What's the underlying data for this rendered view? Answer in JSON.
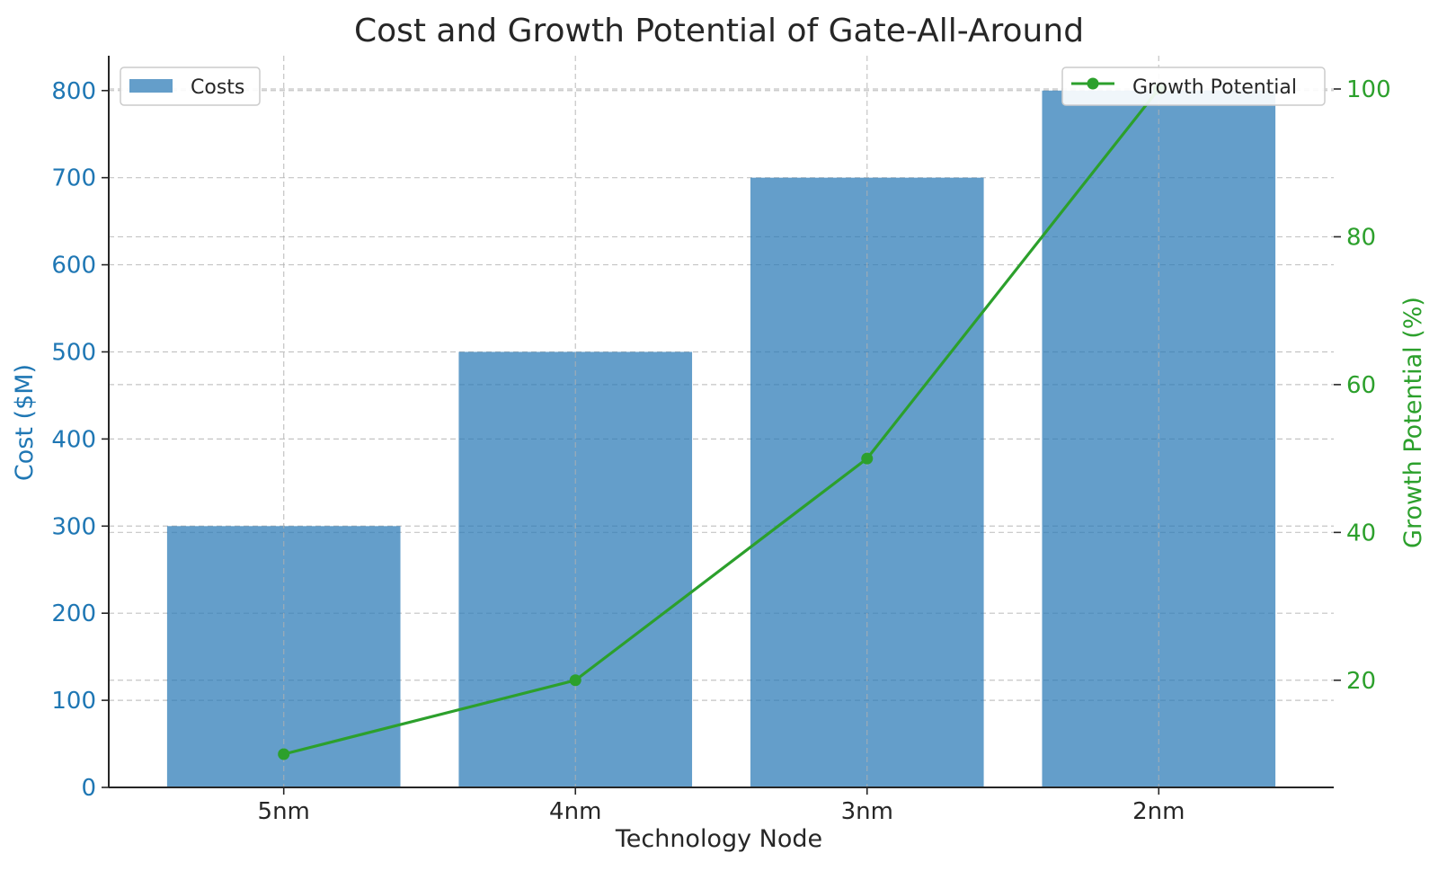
{
  "chart_data": {
    "type": "bar",
    "title": "Cost and Growth Potential of Gate-All-Around",
    "xlabel": "Technology Node",
    "categories": [
      "5nm",
      "4nm",
      "3nm",
      "2nm"
    ],
    "series": [
      {
        "name": "Costs",
        "type": "bar",
        "axis": "left",
        "values": [
          300,
          500,
          700,
          800
        ]
      },
      {
        "name": "Growth Potential",
        "type": "line",
        "axis": "right",
        "values": [
          10,
          20,
          50,
          100
        ]
      }
    ],
    "y_left": {
      "label": "Cost ($M)",
      "ylim": [
        0,
        840
      ],
      "ticks": [
        0,
        100,
        200,
        300,
        400,
        500,
        600,
        700,
        800
      ]
    },
    "y_right": {
      "label": "Growth Potential (%)",
      "ylim": [
        5.5,
        104.5
      ],
      "ticks": [
        20,
        40,
        60,
        80,
        100
      ]
    },
    "grid": true,
    "legend_left_position": "top-left",
    "legend_right_position": "top-right",
    "colors": {
      "bar": "#2878b5",
      "line": "#2ca02c",
      "left_axis_text": "#1f77b4",
      "right_axis_text": "#2ca02c",
      "grid": "#b0b0b0",
      "text": "#262626"
    }
  }
}
